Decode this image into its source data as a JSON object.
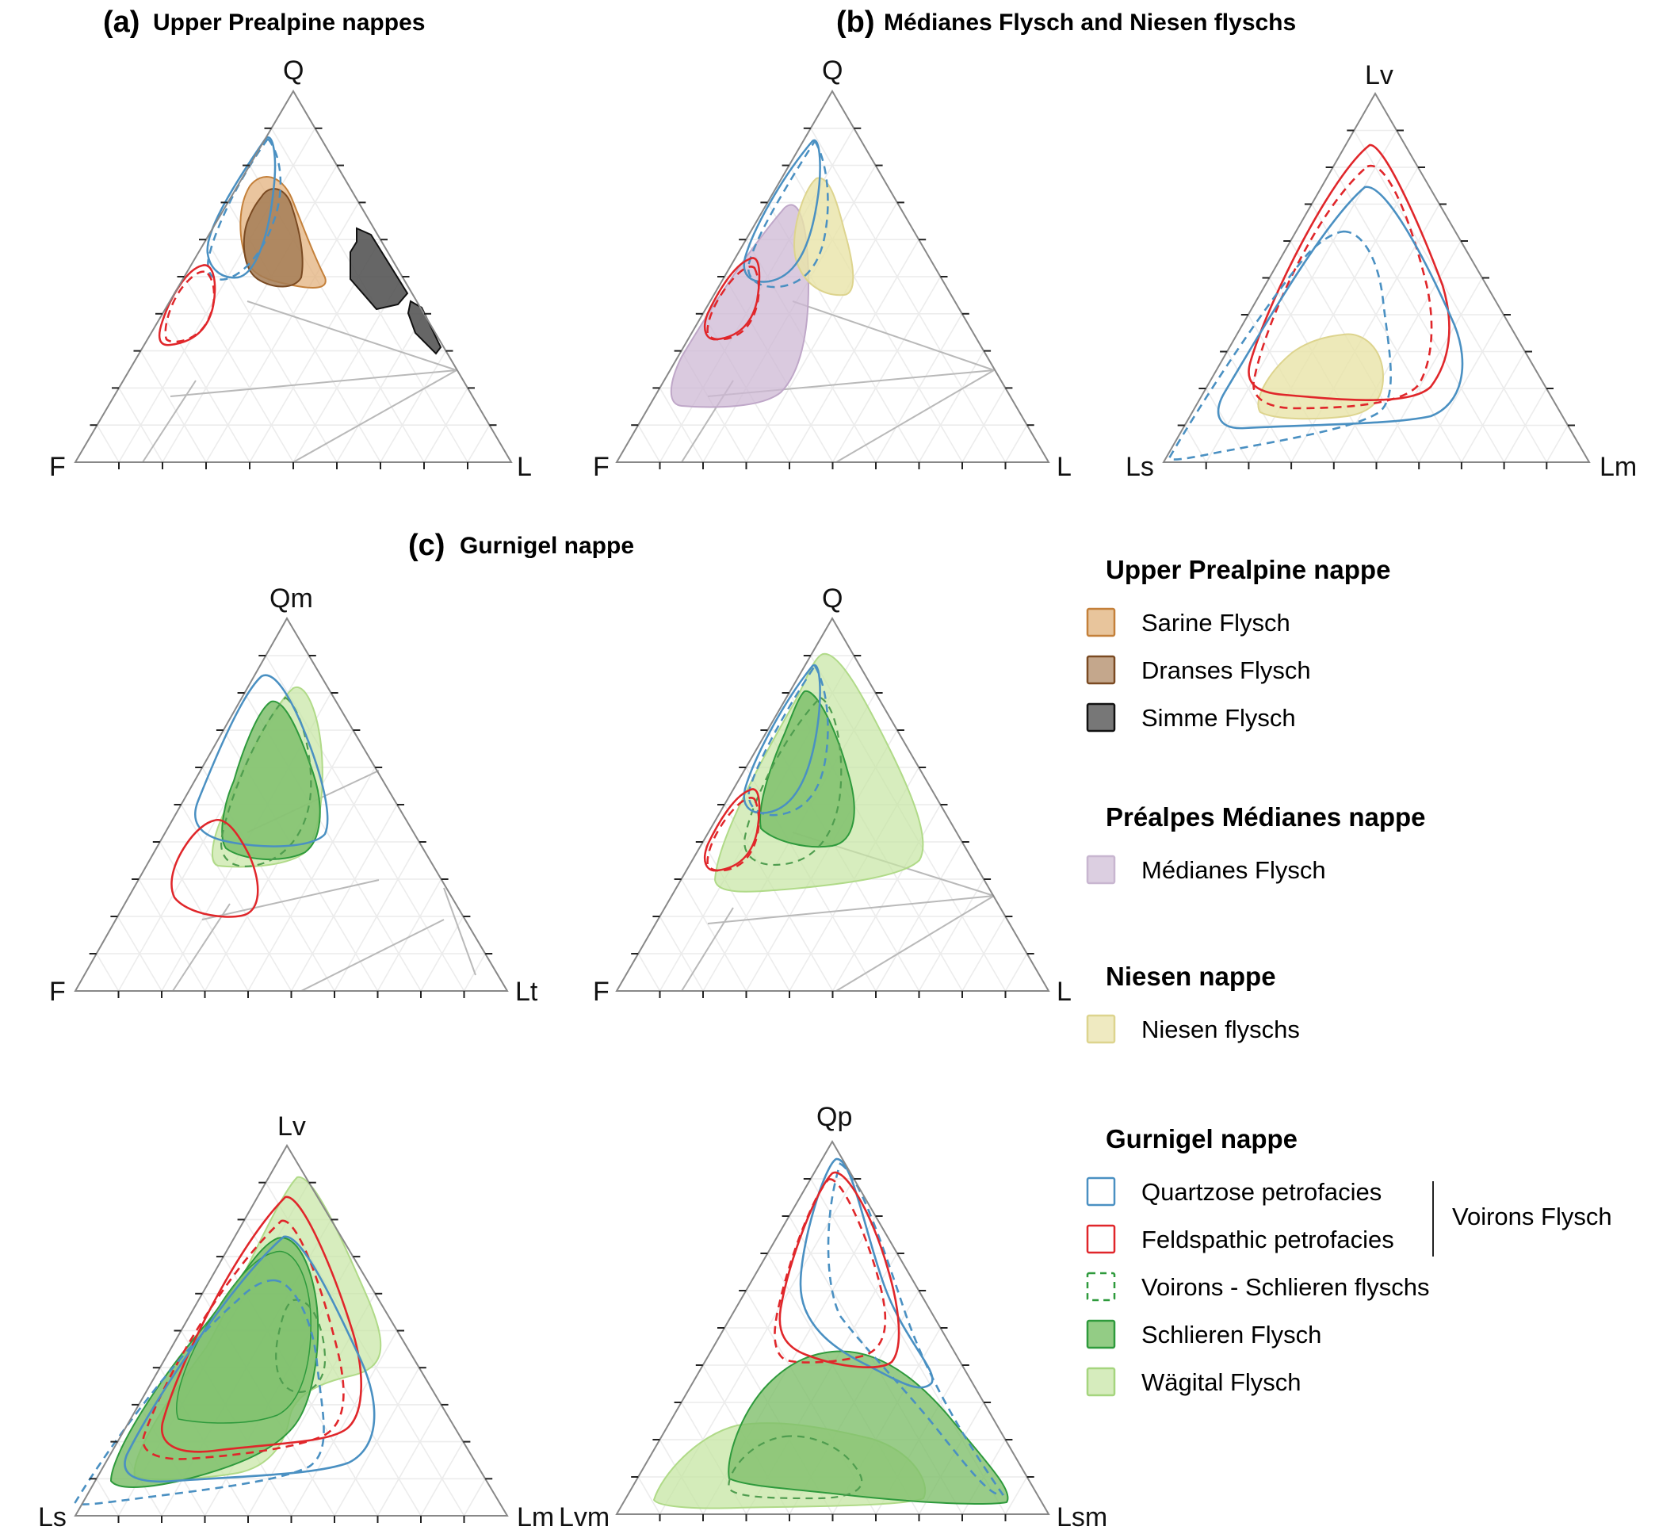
{
  "panels": {
    "a": {
      "letter": "(a)",
      "title": "Upper Prealpine nappes"
    },
    "b": {
      "letter": "(b)",
      "title": "Médianes Flysch and Niesen flyschs"
    },
    "c": {
      "letter": "(c)",
      "title": "Gurnigel nappe"
    }
  },
  "diagrams": {
    "a_qfl": {
      "top": "Q",
      "left": "F",
      "right": "L"
    },
    "b_qfl": {
      "top": "Q",
      "left": "F",
      "right": "L"
    },
    "b_lvlslm": {
      "top": "Lv",
      "left": "Ls",
      "right": "Lm"
    },
    "c_qmflt": {
      "top": "Qm",
      "left": "F",
      "right": "Lt"
    },
    "c_qfl": {
      "top": "Q",
      "left": "F",
      "right": "L"
    },
    "c_lvlslm": {
      "top": "Lv",
      "left": "Ls",
      "right": "Lm"
    },
    "c_qplvmlsm": {
      "top": "Qp",
      "left": "Lvm",
      "right": "Lsm"
    }
  },
  "legend": {
    "groups": [
      {
        "heading": "Upper Prealpine nappe",
        "items": [
          {
            "label": "Sarine Flysch",
            "swatch": "fill",
            "color": "#e8c59c",
            "stroke": "#c4803a"
          },
          {
            "label": "Dranses Flysch",
            "swatch": "fill",
            "color": "#c4a78c",
            "stroke": "#7a4a22"
          },
          {
            "label": "Simme Flysch",
            "swatch": "fill",
            "color": "#777777",
            "stroke": "#111111"
          }
        ]
      },
      {
        "heading": "Préalpes Médianes nappe",
        "items": [
          {
            "label": "Médianes Flysch",
            "swatch": "fill",
            "color": "#dccfe1",
            "stroke": "#c8b6d0"
          }
        ]
      },
      {
        "heading": "Niesen nappe",
        "items": [
          {
            "label": "Niesen flyschs",
            "swatch": "fill",
            "color": "#efeac1",
            "stroke": "#ddd48e"
          }
        ]
      },
      {
        "heading": "Gurnigel nappe",
        "items": [
          {
            "label": "Quartzose petrofacies",
            "swatch": "outline",
            "color": "#4a90c2"
          },
          {
            "label": "Feldspathic petrofacies",
            "swatch": "outline",
            "color": "#e0262a"
          },
          {
            "label": "Voirons - Schlieren flyschs",
            "swatch": "dashed",
            "color": "#2e9a3c"
          },
          {
            "label": "Schlieren Flysch",
            "swatch": "fill",
            "color": "#93cc85",
            "stroke": "#2e9a3c"
          },
          {
            "label": "Wägital Flysch",
            "swatch": "fill",
            "color": "#d6ecbd",
            "stroke": "#a5d57e"
          }
        ]
      }
    ],
    "bracket_label": "Voirons Flysch"
  },
  "colors": {
    "quartzose": "#4a90c2",
    "feldspathic": "#e0262a",
    "voirons_schlieren": "#4f9d4f",
    "schlieren_fill": "#7fbf6c",
    "wagital_fill": "#c6e5a3",
    "sarine_fill": "#e3b27d",
    "dranses_fill": "#a57c56",
    "simme_fill": "#555555",
    "medianes_fill": "#cdb8d4",
    "niesen_fill": "#e9e3a8"
  }
}
